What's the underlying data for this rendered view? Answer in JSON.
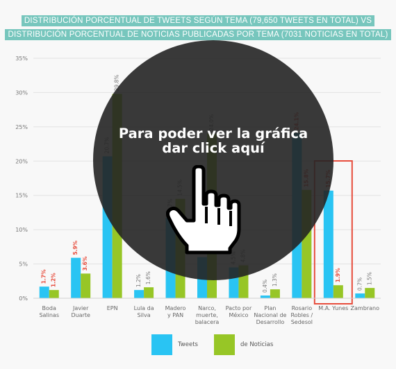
{
  "chart_data": {
    "type": "bar",
    "title_lines": [
      "DISTRIBUCIÓN PORCENTUAL DE TWEETS SEGÚN TEMA (79,650 TWEETS EN TOTAL) VS",
      "DISTRIBUCIÓN PORCENTUAL DE NOTICIAS PUBLICADAS POR TEMA (7031 NOTICIAS EN TOTAL)"
    ],
    "categories": [
      [
        "Boda",
        "Salinas"
      ],
      [
        "Javier",
        "Duarte"
      ],
      [
        "EPN"
      ],
      [
        "Lula da",
        "Silva"
      ],
      [
        "Madero",
        "y PAN"
      ],
      [
        "Narco,",
        "muerte,",
        "balacera"
      ],
      [
        "Pacto por",
        "México"
      ],
      [
        "Plan",
        "Nacional de",
        "Desarrollo"
      ],
      [
        "Rosario",
        "Robles /",
        "Sedesol"
      ],
      [
        "M.A. Yunes"
      ],
      [
        "Zambrano"
      ]
    ],
    "series": [
      {
        "name": "Tweets",
        "color": "#29c4f3",
        "values": [
          1.7,
          5.9,
          20.7,
          1.2,
          11.7,
          6.0,
          4.5,
          0.4,
          24.1,
          15.7,
          0.7
        ],
        "labels": [
          "1.7%",
          "5.9%",
          "20.7%",
          "1.2%",
          "11.7%",
          "6.0%",
          "4.5%",
          "0.4%",
          "24.1%",
          "15.7%",
          "0.7%"
        ]
      },
      {
        "name": "de Noticias",
        "color": "#97c626",
        "values": [
          1.2,
          3.6,
          29.8,
          1.6,
          14.5,
          24.0,
          4.8,
          1.3,
          15.8,
          1.9,
          1.5
        ],
        "labels": [
          "1.2%",
          "3.6%",
          "29.8%",
          "1.6%",
          "14.5%",
          "24.0%",
          "4.8%",
          "1.3%",
          "15.8%",
          "1.9%",
          "1.5%"
        ]
      }
    ],
    "highlight_labels": [
      true,
      true,
      false,
      false,
      false,
      false,
      false,
      false,
      true,
      true,
      false
    ],
    "highlight_color": "#e74c3c",
    "highlight_category": 9,
    "yticks": [
      "0%",
      "5%",
      "10%",
      "15%",
      "20%",
      "25%",
      "30%",
      "35%"
    ],
    "ylim": [
      0,
      35
    ],
    "grid": true,
    "legend_position": "bottom-center"
  },
  "overlay": {
    "line1": "Para poder ver la gráfica",
    "line2": "dar click aquí",
    "icon": "pointing-hand-icon"
  }
}
